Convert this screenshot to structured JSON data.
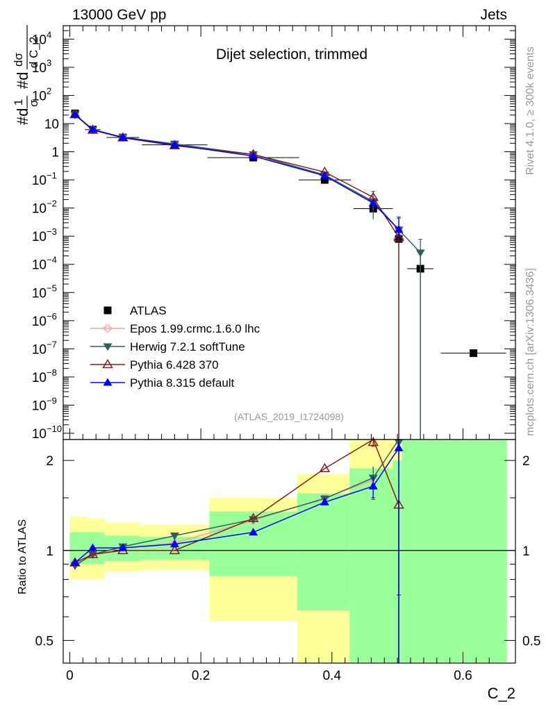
{
  "header": {
    "left": "13000 GeV pp",
    "right": "Jets",
    "plot_title": "Dijet selection, trimmed",
    "analysis_tag": "(ATLAS_2019_I1724098)",
    "side_rivet": "Rivet 4.1.0, ≥ 300k events",
    "side_mcplots": "mcplots.cern.ch [arXiv:1306.3436]"
  },
  "chart_data": [
    {
      "type": "scatter",
      "panel": "main",
      "title": "Dijet selection, trimmed",
      "xlabel": "C_2",
      "ylabel": "#d¹⁄σ #d dσ/d C_2",
      "ylabel_parts": [
        "1",
        "σ",
        "dσ",
        "d C_2"
      ],
      "yscale": "log",
      "ylim": [
        6e-11,
        30000
      ],
      "xlim": [
        -0.01,
        0.68
      ],
      "y_ticks": [
        {
          "v": 1e-10,
          "label": "10",
          "exp": "−10"
        },
        {
          "v": 1e-09,
          "label": "10",
          "exp": "−9"
        },
        {
          "v": 1e-08,
          "label": "10",
          "exp": "−8"
        },
        {
          "v": 1e-07,
          "label": "10",
          "exp": "−7"
        },
        {
          "v": 1e-06,
          "label": "10",
          "exp": "−6"
        },
        {
          "v": 1e-05,
          "label": "10",
          "exp": "−5"
        },
        {
          "v": 0.0001,
          "label": "10",
          "exp": "−4"
        },
        {
          "v": 0.001,
          "label": "10",
          "exp": "−3"
        },
        {
          "v": 0.01,
          "label": "10",
          "exp": "−2"
        },
        {
          "v": 0.1,
          "label": "10",
          "exp": "−1"
        },
        {
          "v": 1,
          "label": "1",
          "exp": ""
        },
        {
          "v": 10,
          "label": "10",
          "exp": ""
        },
        {
          "v": 100,
          "label": "10",
          "exp": "2"
        },
        {
          "v": 1000,
          "label": "10",
          "exp": "3"
        },
        {
          "v": 10000,
          "label": "10",
          "exp": "4"
        }
      ],
      "series": [
        {
          "name": "ATLAS",
          "color": "#000000",
          "marker": "square",
          "x": [
            0.008,
            0.035,
            0.081,
            0.16,
            0.28,
            0.389,
            0.463,
            0.502,
            0.535,
            0.616
          ],
          "y": [
            23,
            6.1,
            3.2,
            1.75,
            0.62,
            0.1,
            0.0095,
            0.0008,
            7e-05,
            7e-08
          ],
          "xerr": [
            0.005,
            0.012,
            0.025,
            0.05,
            0.07,
            0.04,
            0.03,
            0.008,
            0.02,
            0.05
          ]
        },
        {
          "name": "Epos 1.99.crmc.1.6.0 lhc",
          "color": "#f0a0a0",
          "marker": "cross-open",
          "x": [
            0.008,
            0.035,
            0.081,
            0.16,
            0.28,
            0.389,
            0.463,
            0.502
          ],
          "y": [
            21,
            5.9,
            3.25,
            1.85,
            0.78,
            0.15,
            0.017,
            0.0017
          ]
        },
        {
          "name": "Herwig 7.2.1 softTune",
          "color": "#2f6060",
          "marker": "triangle-down",
          "x": [
            0.008,
            0.035,
            0.081,
            0.16,
            0.28,
            0.389,
            0.463,
            0.502,
            0.535
          ],
          "y": [
            20.5,
            5.9,
            3.3,
            1.9,
            0.8,
            0.15,
            0.017,
            0.0017,
            0.00026
          ],
          "err": [
            [
              0.463,
              0.013,
              0.022
            ],
            [
              0.502,
              0.001,
              0.0032
            ],
            [
              0.535,
              0.00012,
              0.00052
            ]
          ],
          "drop_to_floor_at": 0.535
        },
        {
          "name": "Pythia 6.428 370",
          "color": "#8b1a1a",
          "marker": "triangle-up-open",
          "x": [
            0.008,
            0.035,
            0.081,
            0.16,
            0.28,
            0.389,
            0.463,
            0.502
          ],
          "y": [
            21,
            5.9,
            3.15,
            1.65,
            0.8,
            0.19,
            0.024,
            0.0009
          ],
          "drop_to_floor_at": 0.502
        },
        {
          "name": "Pythia 8.315 default",
          "color": "#0000ff",
          "marker": "triangle-up",
          "x": [
            0.008,
            0.035,
            0.081,
            0.16,
            0.28,
            0.389,
            0.463,
            0.502
          ],
          "y": [
            21,
            6.2,
            3.2,
            1.75,
            0.7,
            0.14,
            0.015,
            0.0017
          ],
          "err": [
            [
              0.502,
              0.0011,
              0.0027
            ]
          ]
        }
      ],
      "legend": [
        "ATLAS",
        "Epos 1.99.crmc.1.6.0 lhc",
        "Herwig 7.2.1 softTune",
        "Pythia 6.428 370",
        "Pythia 8.315 default"
      ],
      "legend_position": "bottom-left"
    },
    {
      "type": "line",
      "panel": "ratio",
      "ylabel": "Ratio to ATLAS",
      "xlabel": "C_2",
      "yscale": "log",
      "ylim": [
        0.42,
        2.35
      ],
      "xlim": [
        -0.01,
        0.68
      ],
      "y_ticks": [
        0.5,
        1,
        2
      ],
      "y_tick_labels": [
        "0.5",
        "1",
        "2"
      ],
      "x_ticks": [
        0,
        0.2,
        0.4,
        0.6
      ],
      "x_tick_labels": [
        "0",
        "0.2",
        "0.4",
        "0.6"
      ],
      "uncertainty_bands": [
        {
          "x0": 0.0,
          "x1": 0.027,
          "yellow": [
            0.8,
            1.3
          ],
          "green": [
            0.9,
            1.15
          ]
        },
        {
          "x0": 0.027,
          "x1": 0.053,
          "yellow": [
            0.8,
            1.28
          ],
          "green": [
            0.9,
            1.15
          ]
        },
        {
          "x0": 0.053,
          "x1": 0.107,
          "yellow": [
            0.85,
            1.24
          ],
          "green": [
            0.92,
            1.12
          ]
        },
        {
          "x0": 0.107,
          "x1": 0.213,
          "yellow": [
            0.86,
            1.22
          ],
          "green": [
            0.93,
            1.11
          ]
        },
        {
          "x0": 0.213,
          "x1": 0.347,
          "yellow": [
            0.58,
            1.5
          ],
          "green": [
            0.82,
            1.35
          ]
        },
        {
          "x0": 0.347,
          "x1": 0.427,
          "yellow": [
            0.42,
            1.8
          ],
          "green": [
            0.63,
            1.55
          ]
        },
        {
          "x0": 0.427,
          "x1": 0.493,
          "yellow": [
            0.42,
            2.35
          ],
          "green": [
            0.42,
            1.88
          ]
        },
        {
          "x0": 0.493,
          "x1": 0.507,
          "yellow": [
            0.42,
            2.35
          ],
          "green": [
            0.42,
            2.0
          ]
        },
        {
          "x0": 0.507,
          "x1": 0.667,
          "yellow": [
            0.42,
            2.35
          ],
          "green": [
            0.42,
            2.35
          ]
        }
      ],
      "series": [
        {
          "name": "Epos 1.99.crmc.1.6.0 lhc",
          "color": "#f0a0a0",
          "marker": "cross-open",
          "x": [
            0.008,
            0.035,
            0.081,
            0.16,
            0.28,
            0.389,
            0.463
          ],
          "y": [
            0.91,
            0.97,
            1.02,
            1.06,
            1.26,
            1.5,
            1.72
          ]
        },
        {
          "name": "Herwig 7.2.1 softTune",
          "color": "#2f6060",
          "marker": "triangle-down",
          "x": [
            0.008,
            0.035,
            0.081,
            0.16,
            0.28,
            0.389,
            0.463,
            0.502
          ],
          "y": [
            0.89,
            0.97,
            1.03,
            1.12,
            1.27,
            1.49,
            1.75,
            2.35
          ],
          "err": [
            [
              0.463,
              0.27,
              0.16
            ]
          ]
        },
        {
          "name": "Pythia 6.428 370",
          "color": "#8b1a1a",
          "marker": "triangle-up-open",
          "x": [
            0.008,
            0.035,
            0.081,
            0.16,
            0.28,
            0.389,
            0.463,
            0.502
          ],
          "y": [
            0.91,
            0.97,
            1.0,
            1.0,
            1.28,
            1.88,
            2.35,
            1.42
          ],
          "err": [
            [
              0.463,
              0.12,
              0.0
            ]
          ],
          "drop_to_floor_at": 0.502
        },
        {
          "name": "Pythia 8.315 default",
          "color": "#0000ff",
          "marker": "triangle-up",
          "x": [
            0.008,
            0.035,
            0.081,
            0.16,
            0.28,
            0.389,
            0.463,
            0.502
          ],
          "y": [
            0.91,
            1.02,
            1.02,
            1.05,
            1.15,
            1.45,
            1.64,
            2.2
          ],
          "err": [
            [
              0.463,
              0.14,
              0.13
            ],
            [
              0.502,
              1.49,
              0.15
            ]
          ],
          "drop_to_floor_at": 0.502
        }
      ]
    }
  ]
}
